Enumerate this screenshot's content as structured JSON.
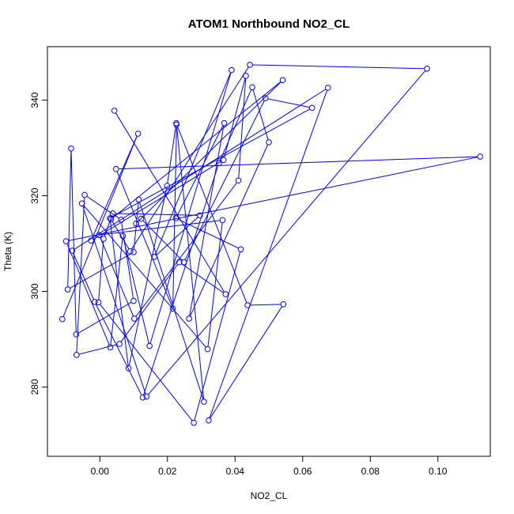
{
  "chart_data": {
    "type": "scatter",
    "mode": "points+lines",
    "title": "ATOM1 Northbound NO2_CL",
    "xlabel": "NO2_CL",
    "ylabel": "Theta (K)",
    "xlim": [
      -0.0155,
      0.1155
    ],
    "ylim": [
      265.5,
      351.2
    ],
    "xticks": [
      0.0,
      0.02,
      0.04,
      0.06,
      0.08,
      0.1
    ],
    "xtick_labels": [
      "0.00",
      "0.02",
      "0.04",
      "0.06",
      "0.08",
      "0.10"
    ],
    "yticks": [
      280,
      300,
      320,
      340
    ],
    "ytick_labels": [
      "280",
      "300",
      "320",
      "340"
    ],
    "grid": false,
    "legend": false,
    "series": [
      {
        "color": "#0000ff",
        "points": [
          [
            0.0043,
            337.8
          ],
          [
            0.0372,
            299.4
          ],
          [
            0.0235,
            306.1
          ],
          [
            0.0058,
            289.0
          ],
          [
            -0.0069,
            286.7
          ],
          [
            -0.0045,
            320.2
          ],
          [
            0.0063,
            315.0
          ],
          [
            0.01,
            298.0
          ],
          [
            -0.007,
            291.0
          ],
          [
            -0.0085,
            329.9
          ],
          [
            -0.0095,
            300.4
          ],
          [
            0.01,
            308.2
          ],
          [
            0.0115,
            319.2
          ],
          [
            0.0308,
            276.9
          ],
          [
            0.0227,
            334.9
          ],
          [
            0.0216,
            296.4
          ],
          [
            0.0048,
            325.6
          ],
          [
            0.1125,
            328.2
          ],
          [
            -0.01,
            310.5
          ],
          [
            0.0031,
            288.3
          ],
          [
            0.0068,
            311.6
          ],
          [
            0.0147,
            288.6
          ],
          [
            0.039,
            346.3
          ],
          [
            0.0161,
            307.2
          ],
          [
            0.0296,
            315.9
          ],
          [
            0.0038,
            316.3
          ],
          [
            0.0011,
            311.0
          ],
          [
            -0.0004,
            297.7
          ],
          [
            0.0278,
            272.5
          ],
          [
            0.0417,
            308.8
          ],
          [
            0.0225,
            315.3
          ],
          [
            0.0368,
            335.2
          ],
          [
            0.0264,
            294.3
          ],
          [
            0.05,
            331.2
          ],
          [
            0.0451,
            342.7
          ],
          [
            0.0352,
            326.8
          ],
          [
            0.0127,
            277.8
          ],
          [
            -0.0015,
            297.8
          ],
          [
            -0.0082,
            308.5
          ],
          [
            0.0675,
            342.6
          ],
          [
            0.0322,
            273.0
          ],
          [
            0.0543,
            297.3
          ],
          [
            0.0437,
            297.1
          ],
          [
            0.0226,
            335.2
          ],
          [
            0.0199,
            322.1
          ],
          [
            0.0085,
            283.9
          ],
          [
            0.003,
            315.3
          ],
          [
            0.0628,
            338.4
          ],
          [
            0.049,
            340.4
          ],
          [
            0.0249,
            306.1
          ],
          [
            0.0122,
            315.2
          ],
          [
            0.0107,
            314.2
          ],
          [
            0.0541,
            344.2
          ],
          [
            0.0033,
            315.1
          ],
          [
            0.009,
            308.4
          ],
          [
            0.0444,
            347.4
          ],
          [
            0.0968,
            346.6
          ],
          [
            0.0138,
            278.0
          ],
          [
            -0.0053,
            318.4
          ],
          [
            0.0319,
            287.9
          ],
          [
            0.0363,
            314.9
          ],
          [
            -0.0002,
            311.8
          ],
          [
            0.0102,
            294.3
          ],
          [
            0.041,
            323.2
          ],
          [
            0.0432,
            345.1
          ],
          [
            0.0366,
            327.5
          ],
          [
            -0.0026,
            310.6
          ],
          [
            0.0113,
            333.0
          ],
          [
            -0.0111,
            294.2
          ]
        ]
      }
    ]
  }
}
